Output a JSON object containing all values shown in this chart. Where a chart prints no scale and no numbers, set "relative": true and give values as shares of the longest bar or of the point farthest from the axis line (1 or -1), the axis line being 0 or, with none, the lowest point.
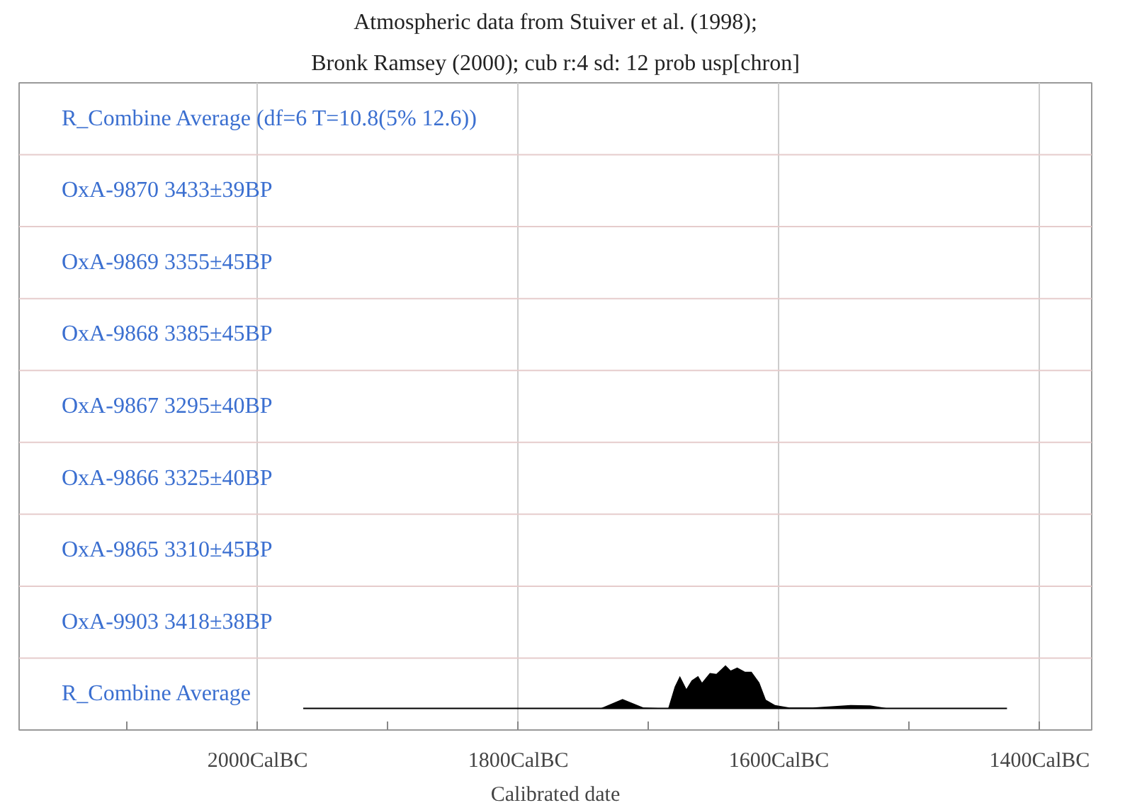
{
  "chart_data": {
    "type": "area",
    "title": "Atmospheric data from Stuiver et al. (1998);",
    "subtitle": "Bronk Ramsey (2000); cub r:4 sd: 12 prob usp[chron]",
    "xlabel": "Calibrated date",
    "x": [
      1965,
      1737,
      1720,
      1704,
      1685,
      1680,
      1676,
      1671,
      1667,
      1662,
      1659,
      1653,
      1648,
      1641,
      1637,
      1632,
      1626,
      1621,
      1615,
      1610,
      1603,
      1592,
      1574,
      1545,
      1530,
      1516,
      1425
    ],
    "series": [
      {
        "color": "#000000",
        "values": [
          0,
          0,
          0.22,
          0.02,
          0,
          0.5,
          0.75,
          0.45,
          0.65,
          0.75,
          0.6,
          0.82,
          0.8,
          1.0,
          0.88,
          0.95,
          0.85,
          0.85,
          0.6,
          0.2,
          0.08,
          0.02,
          0.02,
          0.08,
          0.07,
          0,
          0
        ]
      }
    ],
    "relative": true,
    "xlim": [
      2183,
      1360
    ],
    "xticks": [
      {
        "value": 2100,
        "label": null
      },
      {
        "value": 2000,
        "label": "2000CalBC"
      },
      {
        "value": 1900,
        "label": null
      },
      {
        "value": 1800,
        "label": "1800CalBC"
      },
      {
        "value": 1700,
        "label": null
      },
      {
        "value": 1600,
        "label": "1600CalBC"
      },
      {
        "value": 1500,
        "label": null
      },
      {
        "value": 1400,
        "label": "1400CalBC"
      }
    ],
    "grid": "x",
    "annotations": [
      "R_Combine Average (df=6 T=10.8(5% 12.6))",
      "OxA-9870  3433±39BP",
      "OxA-9869  3355±45BP",
      "OxA-9868  3385±45BP",
      "OxA-9867  3295±40BP",
      "OxA-9866  3325±40BP",
      "OxA-9865  3310±45BP",
      "OxA-9903  3418±38BP",
      "R_Combine Average"
    ]
  }
}
